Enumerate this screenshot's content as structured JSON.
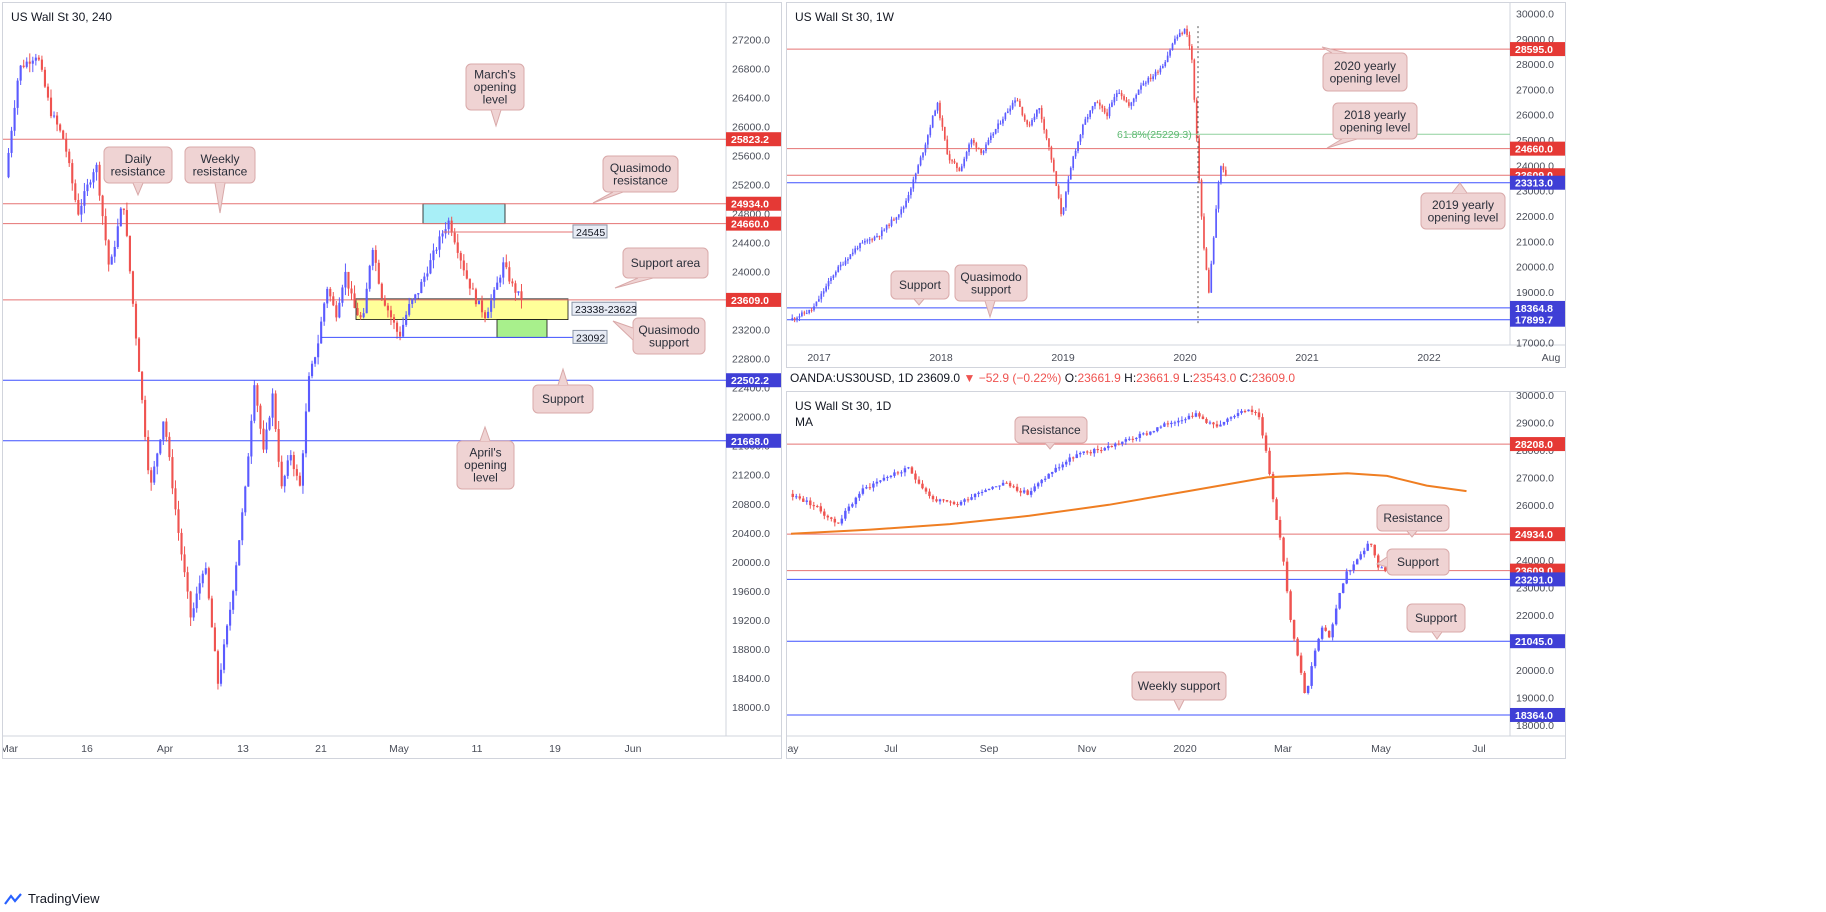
{
  "header_daily": {
    "symbol": "OANDA:US30USD, 1D",
    "last": "23609.0",
    "change": "−52.9 (−0.22%)",
    "open_label": "O:",
    "open": "23661.9",
    "high_label": "H:",
    "high": "23661.9",
    "low_label": "L:",
    "low": "23543.0",
    "close_label": "C:",
    "close": "23609.0"
  },
  "footer": {
    "brand": "TradingView"
  },
  "colors": {
    "up": "#5b5bff",
    "down": "#ef5350",
    "red_line": "#e57373",
    "blue_line": "#3f51ff",
    "label_red": "#e53935",
    "label_blue": "#3f3fd6",
    "callout_bg": "#efd3d3",
    "callout_border": "#d9a9a9",
    "zone_yellow": "#ffff99",
    "zone_cyan": "#a8eff7",
    "zone_green": "#a8f08c",
    "ma": "#ef7e22",
    "fib": "#8fd19e"
  },
  "chart_data": [
    {
      "id": "h4",
      "type": "candlestick",
      "title": "US Wall St 30, 240",
      "ylim": [
        17600,
        27700
      ],
      "x_ticks": [
        "Mar",
        "16",
        "Apr",
        "13",
        "21",
        "May",
        "11",
        "19",
        "Jun"
      ],
      "y_ticks": [
        18000,
        18400,
        18800,
        19200,
        19600,
        20000,
        20400,
        20800,
        21200,
        21600,
        22000,
        22400,
        22800,
        23200,
        23600,
        24000,
        24400,
        24800,
        25200,
        25600,
        26000,
        26400,
        26800,
        27200
      ],
      "levels": [
        {
          "value": 25823.2,
          "label": "25823.2",
          "color": "red"
        },
        {
          "value": 24934.0,
          "label": "24934.0",
          "color": "red"
        },
        {
          "value": 24660.0,
          "label": "24660.0",
          "color": "red"
        },
        {
          "value": 23609.0,
          "label": "23609.0",
          "color": "red"
        },
        {
          "value": 22502.2,
          "label": "22502.2",
          "color": "blue"
        },
        {
          "value": 21668.0,
          "label": "21668.0",
          "color": "blue"
        }
      ],
      "zones": [
        {
          "label": "23338-23623",
          "from": 23338,
          "to": 23623,
          "color": "yellow"
        },
        {
          "label": "",
          "from": 24660,
          "to": 24934,
          "color": "cyan"
        },
        {
          "label": "",
          "from": 23092,
          "to": 23338,
          "color": "green"
        }
      ],
      "tags": [
        {
          "value": 24545,
          "label": "24545"
        },
        {
          "value": 23092,
          "label": "23092"
        }
      ],
      "annotations": [
        "March's opening level",
        "Daily resistance",
        "Weekly resistance",
        "Quasimodo resistance",
        "Support area",
        "Quasimodo support",
        "Support",
        "April's opening level"
      ],
      "path": [
        [
          0,
          25300
        ],
        [
          3,
          26800
        ],
        [
          7,
          27000
        ],
        [
          10,
          26200
        ],
        [
          13,
          25800
        ],
        [
          16,
          24800
        ],
        [
          20,
          25500
        ],
        [
          23,
          24000
        ],
        [
          26,
          25000
        ],
        [
          29,
          23000
        ],
        [
          32,
          21000
        ],
        [
          35,
          22000
        ],
        [
          38,
          20500
        ],
        [
          41,
          19200
        ],
        [
          44,
          20000
        ],
        [
          47,
          18300
        ],
        [
          50,
          19500
        ],
        [
          53,
          21000
        ],
        [
          55,
          22500
        ],
        [
          57,
          21500
        ],
        [
          59,
          22300
        ],
        [
          61,
          21000
        ],
        [
          63,
          21500
        ],
        [
          65,
          21000
        ],
        [
          67,
          22500
        ],
        [
          69,
          23000
        ],
        [
          71,
          23800
        ],
        [
          73,
          23400
        ],
        [
          75,
          24000
        ],
        [
          77,
          23500
        ],
        [
          79,
          23300
        ],
        [
          81,
          24400
        ],
        [
          83,
          23700
        ],
        [
          85,
          23400
        ],
        [
          87,
          23100
        ],
        [
          89,
          23500
        ],
        [
          91,
          23700
        ],
        [
          93,
          24000
        ],
        [
          95,
          24300
        ],
        [
          97,
          24600
        ],
        [
          98,
          24700
        ],
        [
          100,
          24300
        ],
        [
          102,
          23900
        ],
        [
          104,
          23600
        ],
        [
          106,
          23400
        ],
        [
          108,
          23700
        ],
        [
          110,
          24100
        ],
        [
          112,
          23800
        ],
        [
          114,
          23609
        ]
      ]
    },
    {
      "id": "weekly",
      "type": "candlestick",
      "title": "US Wall St 30, 1W",
      "ylim": [
        16900,
        30100
      ],
      "x_ticks": [
        "2017",
        "2018",
        "2019",
        "2020",
        "2021",
        "2022",
        "Aug"
      ],
      "y_ticks": [
        17000,
        18000,
        19000,
        20000,
        21000,
        22000,
        23000,
        24000,
        25000,
        26000,
        27000,
        28000,
        29000,
        30000
      ],
      "levels": [
        {
          "value": 28595.0,
          "label": "28595.0",
          "color": "red"
        },
        {
          "value": 24660.0,
          "label": "24660.0",
          "color": "red"
        },
        {
          "value": 23609.0,
          "label": "23609.0",
          "color": "red"
        },
        {
          "value": 23313.0,
          "label": "23313.0",
          "color": "blue"
        },
        {
          "value": 18364.8,
          "label": "18364.8",
          "color": "blue"
        },
        {
          "value": 17899.7,
          "label": "17899.7",
          "color": "blue"
        }
      ],
      "fib": {
        "value": 25229.3,
        "label": "61.8%(25229.3)"
      },
      "annotations": [
        "2020 yearly opening level",
        "2018 yearly opening level",
        "2019 yearly opening level",
        "Support",
        "Quasimodo support"
      ],
      "path": [
        [
          0,
          17900
        ],
        [
          4,
          18300
        ],
        [
          8,
          19800
        ],
        [
          12,
          20800
        ],
        [
          16,
          21300
        ],
        [
          20,
          22300
        ],
        [
          22,
          23500
        ],
        [
          24,
          24900
        ],
        [
          26,
          26500
        ],
        [
          28,
          24300
        ],
        [
          30,
          23800
        ],
        [
          32,
          25000
        ],
        [
          34,
          24500
        ],
        [
          36,
          25300
        ],
        [
          38,
          26000
        ],
        [
          40,
          26700
        ],
        [
          42,
          25500
        ],
        [
          44,
          26300
        ],
        [
          46,
          24500
        ],
        [
          48,
          22000
        ],
        [
          50,
          24300
        ],
        [
          52,
          25700
        ],
        [
          54,
          26500
        ],
        [
          56,
          26000
        ],
        [
          58,
          27000
        ],
        [
          60,
          26300
        ],
        [
          62,
          27200
        ],
        [
          64,
          27500
        ],
        [
          66,
          28000
        ],
        [
          68,
          29000
        ],
        [
          70,
          29400
        ],
        [
          71,
          28200
        ],
        [
          72,
          24500
        ],
        [
          73,
          21000
        ],
        [
          74,
          19000
        ],
        [
          75,
          21500
        ],
        [
          76,
          24000
        ],
        [
          77,
          23609
        ]
      ]
    },
    {
      "id": "daily",
      "type": "candlestick",
      "title": "US Wall St 30, 1D",
      "indicator": "MA",
      "ylim": [
        17600,
        30100
      ],
      "x_ticks": [
        "ay",
        "Jul",
        "Sep",
        "Nov",
        "2020",
        "Mar",
        "May",
        "Jul"
      ],
      "y_ticks": [
        18000,
        19000,
        20000,
        21000,
        22000,
        23000,
        24000,
        25000,
        26000,
        27000,
        28000,
        29000,
        30000
      ],
      "levels": [
        {
          "value": 28208.0,
          "label": "28208.0",
          "color": "red"
        },
        {
          "value": 24934.0,
          "label": "24934.0",
          "color": "red"
        },
        {
          "value": 23609.0,
          "label": "23609.0",
          "color": "red"
        },
        {
          "value": 23291.0,
          "label": "23291.0",
          "color": "blue"
        },
        {
          "value": 21045.0,
          "label": "21045.0",
          "color": "blue"
        },
        {
          "value": 18364.0,
          "label": "18364.0",
          "color": "blue"
        }
      ],
      "ma_path": [
        [
          0,
          24950
        ],
        [
          20,
          25100
        ],
        [
          40,
          25300
        ],
        [
          60,
          25600
        ],
        [
          80,
          26000
        ],
        [
          100,
          26500
        ],
        [
          120,
          27000
        ],
        [
          140,
          27150
        ],
        [
          150,
          27050
        ],
        [
          160,
          26700
        ],
        [
          170,
          26500
        ]
      ],
      "annotations": [
        "Resistance",
        "Resistance",
        "Support",
        "Support",
        "Weekly support"
      ],
      "path": [
        [
          0,
          26400
        ],
        [
          6,
          26000
        ],
        [
          12,
          25300
        ],
        [
          18,
          26500
        ],
        [
          24,
          27000
        ],
        [
          30,
          27300
        ],
        [
          36,
          26200
        ],
        [
          42,
          26000
        ],
        [
          48,
          26500
        ],
        [
          54,
          26800
        ],
        [
          60,
          26400
        ],
        [
          66,
          27200
        ],
        [
          72,
          27800
        ],
        [
          78,
          28000
        ],
        [
          84,
          28300
        ],
        [
          90,
          28600
        ],
        [
          96,
          29000
        ],
        [
          102,
          29300
        ],
        [
          108,
          28800
        ],
        [
          114,
          29500
        ],
        [
          118,
          29300
        ],
        [
          120,
          28000
        ],
        [
          122,
          26000
        ],
        [
          124,
          24500
        ],
        [
          126,
          22000
        ],
        [
          128,
          20500
        ],
        [
          130,
          19000
        ],
        [
          132,
          20500
        ],
        [
          134,
          21500
        ],
        [
          136,
          21200
        ],
        [
          138,
          22500
        ],
        [
          140,
          23500
        ],
        [
          142,
          23800
        ],
        [
          144,
          24200
        ],
        [
          146,
          24700
        ],
        [
          148,
          23800
        ],
        [
          150,
          23609
        ]
      ]
    }
  ]
}
